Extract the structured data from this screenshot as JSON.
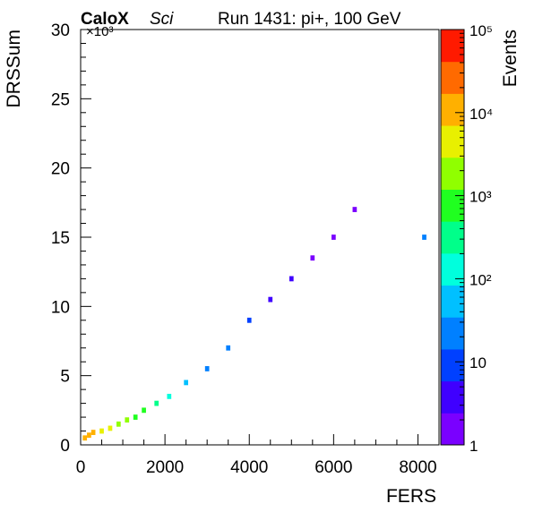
{
  "header": {
    "brand_bold": "CaloX",
    "brand_italic": "Sci",
    "run_label": "Run 1431: pi+, 100 GeV"
  },
  "chart_data": {
    "type": "heatmap",
    "xlabel": "FERS",
    "ylabel": "DRSSum",
    "y_multiplier_label": "×10³",
    "xlim": [
      0,
      8500
    ],
    "ylim": [
      0,
      30000
    ],
    "x_ticks": [
      "0",
      "2000",
      "4000",
      "6000",
      "8000"
    ],
    "y_ticks": [
      "0",
      "5",
      "10",
      "15",
      "20",
      "25",
      "30"
    ],
    "colorbar": {
      "label": "Events",
      "scale": "log",
      "range": [
        1,
        100000
      ],
      "ticks": [
        "1",
        "10",
        "10²",
        "10³",
        "10⁴",
        "10⁵"
      ]
    },
    "grid": false,
    "bins": [
      {
        "x": 100,
        "y": 500,
        "count": 8000
      },
      {
        "x": 200,
        "y": 700,
        "count": 12000
      },
      {
        "x": 300,
        "y": 900,
        "count": 9000
      },
      {
        "x": 500,
        "y": 1000,
        "count": 6000
      },
      {
        "x": 700,
        "y": 1200,
        "count": 4000
      },
      {
        "x": 900,
        "y": 1500,
        "count": 2500
      },
      {
        "x": 1100,
        "y": 1800,
        "count": 1500
      },
      {
        "x": 1300,
        "y": 2000,
        "count": 900
      },
      {
        "x": 1500,
        "y": 2500,
        "count": 500
      },
      {
        "x": 1800,
        "y": 3000,
        "count": 250
      },
      {
        "x": 2100,
        "y": 3500,
        "count": 120
      },
      {
        "x": 2500,
        "y": 4500,
        "count": 60
      },
      {
        "x": 3000,
        "y": 5500,
        "count": 30
      },
      {
        "x": 3500,
        "y": 7000,
        "count": 15
      },
      {
        "x": 4000,
        "y": 9000,
        "count": 8
      },
      {
        "x": 4500,
        "y": 10500,
        "count": 5
      },
      {
        "x": 5000,
        "y": 12000,
        "count": 3
      },
      {
        "x": 5500,
        "y": 13500,
        "count": 2
      },
      {
        "x": 6000,
        "y": 15000,
        "count": 1
      },
      {
        "x": 6500,
        "y": 17000,
        "count": 1
      },
      {
        "x": 8150,
        "y": 15000,
        "count": 20
      }
    ]
  }
}
